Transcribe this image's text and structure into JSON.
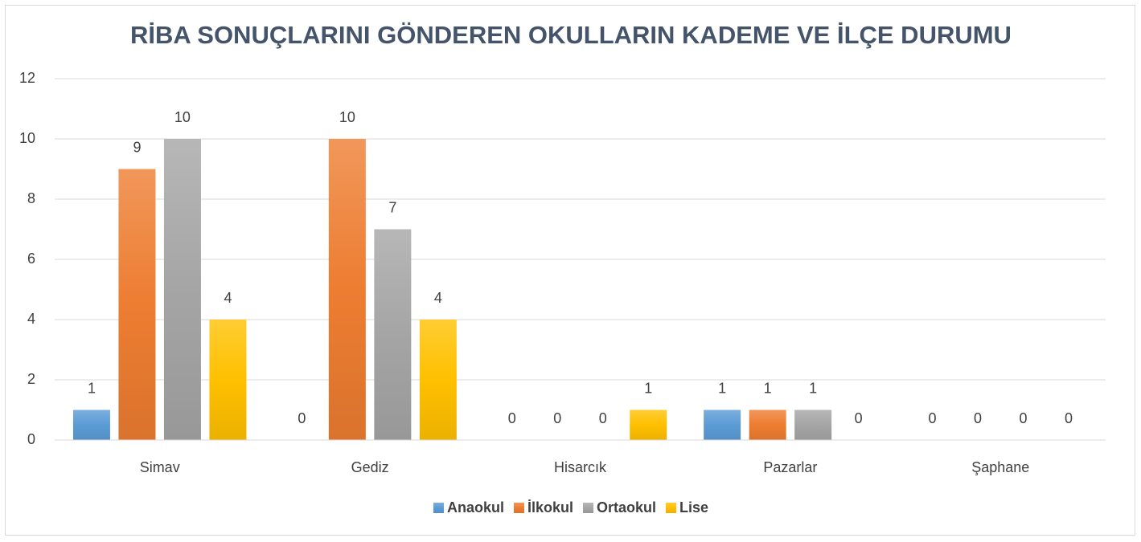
{
  "chart_data": {
    "type": "bar",
    "title": "RİBA SONUÇLARINI GÖNDEREN OKULLARIN KADEME VE İLÇE DURUMU",
    "categories": [
      "Simav",
      "Gediz",
      "Hisarcık",
      "Pazarlar",
      "Şaphane"
    ],
    "series": [
      {
        "name": "Anaokul",
        "color": "#5b9bd5",
        "values": [
          1,
          0,
          0,
          1,
          0
        ]
      },
      {
        "name": "İlkokul",
        "color": "#ed7d31",
        "values": [
          9,
          10,
          0,
          1,
          0
        ]
      },
      {
        "name": "Ortaokul",
        "color": "#a5a5a5",
        "values": [
          10,
          7,
          0,
          1,
          0
        ]
      },
      {
        "name": "Lise",
        "color": "#ffc000",
        "values": [
          4,
          4,
          1,
          0,
          0
        ]
      }
    ],
    "ylim": [
      0,
      12
    ],
    "yticks": [
      0,
      2,
      4,
      6,
      8,
      10,
      12
    ],
    "grid": true,
    "legend": "bottom"
  }
}
